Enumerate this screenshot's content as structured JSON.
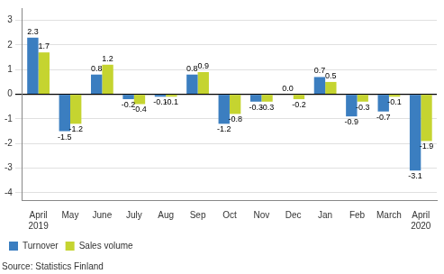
{
  "chart_data": {
    "type": "bar",
    "categories": [
      "April\n2019",
      "May",
      "June",
      "July",
      "Aug",
      "Sep",
      "Oct",
      "Nov",
      "Dec",
      "Jan",
      "Feb",
      "March",
      "April\n2020"
    ],
    "series": [
      {
        "name": "Turnover",
        "color": "#3B7EC0",
        "values": [
          2.3,
          -1.5,
          0.8,
          -0.2,
          -0.1,
          0.8,
          -1.2,
          -0.3,
          0.0,
          0.7,
          -0.9,
          -0.7,
          -3.1
        ],
        "value_labels": [
          "2.3",
          "-1.5",
          "0.8",
          "-0.2",
          "-0.1",
          "0.8",
          "-1.2",
          "-0.3",
          "0.0",
          "0.7",
          "-0.9",
          "-0.7",
          "-3.1"
        ]
      },
      {
        "name": "Sales volume",
        "color": "#C5D430",
        "values": [
          1.7,
          -1.2,
          1.2,
          -0.4,
          -0.1,
          0.9,
          -0.8,
          -0.3,
          -0.2,
          0.5,
          -0.3,
          -0.1,
          -1.9
        ]
      }
    ],
    "ylim": [
      -4.3,
      3.5
    ],
    "yticks": [
      -4,
      -3,
      -2,
      -1,
      0,
      1,
      2,
      3
    ],
    "grid": true,
    "legend": "lower left",
    "data_labels": true,
    "source": "Source: Statistics Finland"
  }
}
